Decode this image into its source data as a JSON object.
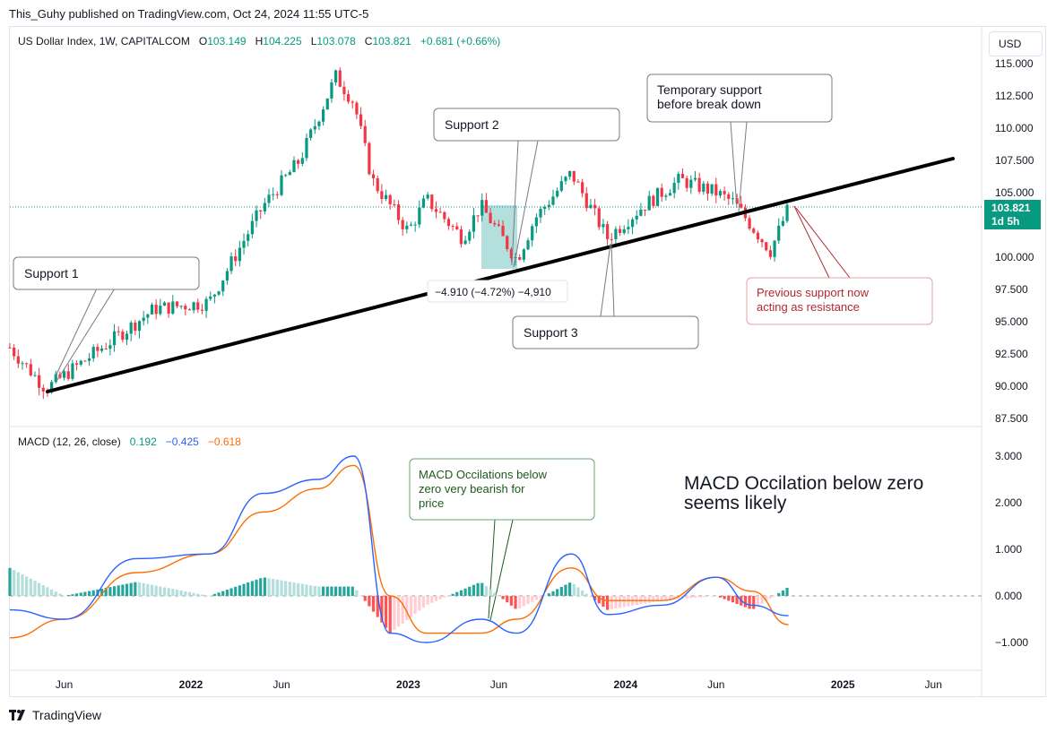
{
  "published": "This_Guhy published on TradingView.com, Oct 24, 2024 11:55 UTC-5",
  "footer_brand": "TradingView",
  "currency_button": "USD",
  "header": {
    "symbol": "US Dollar Index, 1W, CAPITALCOM",
    "o_label": "O",
    "o_value": "103.149",
    "h_label": "H",
    "h_value": "104.225",
    "l_label": "L",
    "l_value": "103.078",
    "c_label": "C",
    "c_value": "103.821",
    "change": "+0.681 (+0.66%)"
  },
  "price_badge": {
    "price": "103.821",
    "countdown": "1d 5h"
  },
  "measure_label": "−4.910 (−4.72%) −4,910",
  "macd_header": {
    "label": "MACD (12, 26, close)",
    "hist": "0.192",
    "macd": "−0.425",
    "signal": "−0.618"
  },
  "annotations": {
    "support1": "Support 1",
    "support2": "Support 2",
    "support3": "Support 3",
    "temp_support_l1": "Temporary support",
    "temp_support_l2": "before break down",
    "resistance_l1": "Previous support now",
    "resistance_l2": "acting as resistance",
    "macd_note_l1": "MACD Occilations below",
    "macd_note_l2": "zero very bearish for",
    "macd_note_l3": "price",
    "macd_big_l1": "MACD Occilation below zero",
    "macd_big_l2": "seems likely"
  },
  "colors": {
    "up": "#089981",
    "down": "#f23645",
    "macd": "#2962ff",
    "signal": "#ff6d00",
    "hist_up_strong": "#26a69a",
    "hist_up_weak": "#b2dfdb",
    "hist_dn_strong": "#ff5252",
    "hist_dn_weak": "#ffcdd2",
    "resistance_text": "#b22833",
    "macd_note_text": "#1e5a1e"
  },
  "chart_data": [
    {
      "type": "candlestick",
      "title": "US Dollar Index, 1W, CAPITALCOM",
      "x_tick_labels": [
        "Jun",
        "2022",
        "Jun",
        "2023",
        "Jun",
        "2024",
        "Jun",
        "2025",
        "Jun"
      ],
      "y_tick_labels": [
        "115.000",
        "112.500",
        "110.000",
        "107.500",
        "105.000",
        "100.000",
        "97.500",
        "95.000",
        "92.500",
        "90.000",
        "87.500"
      ],
      "ylim": [
        87.5,
        115.0
      ],
      "current_price": 103.821,
      "close_path": [
        [
          "2021-03",
          93.0
        ],
        [
          "2021-05",
          89.8
        ],
        [
          "2021-08",
          92.9
        ],
        [
          "2021-11",
          96.0
        ],
        [
          "2022-02",
          96.5
        ],
        [
          "2022-05",
          104.0
        ],
        [
          "2022-07",
          107.5
        ],
        [
          "2022-09",
          114.0
        ],
        [
          "2022-10",
          112.0
        ],
        [
          "2022-11",
          106.0
        ],
        [
          "2023-01",
          102.0
        ],
        [
          "2023-02",
          104.5
        ],
        [
          "2023-04",
          101.5
        ],
        [
          "2023-05",
          104.0
        ],
        [
          "2023-07",
          99.8
        ],
        [
          "2023-08",
          103.0
        ],
        [
          "2023-10",
          106.5
        ],
        [
          "2023-12",
          101.5
        ],
        [
          "2024-02",
          104.0
        ],
        [
          "2024-04",
          106.0
        ],
        [
          "2024-06",
          105.0
        ],
        [
          "2024-07",
          104.2
        ],
        [
          "2024-09",
          100.5
        ],
        [
          "2024-10",
          103.821
        ]
      ],
      "trendline": [
        [
          "2021-05",
          89.6
        ],
        [
          "2025-01",
          107.6
        ]
      ],
      "measure_box": {
        "from": 103.9,
        "to": 99.0,
        "change": -4.91,
        "change_pct": -4.72
      }
    },
    {
      "type": "line",
      "title": "MACD (12, 26, close)",
      "y_tick_labels": [
        "3.000",
        "2.000",
        "1.000",
        "0.000",
        "−1.000"
      ],
      "ylim": [
        -1.5,
        3.2
      ],
      "series": [
        {
          "name": "MACD",
          "x": [
            "2021-03",
            "2021-06",
            "2021-10",
            "2022-02",
            "2022-05",
            "2022-08",
            "2022-10",
            "2022-12",
            "2023-02",
            "2023-05",
            "2023-07",
            "2023-10",
            "2023-12",
            "2024-03",
            "2024-06",
            "2024-08",
            "2024-10"
          ],
          "values": [
            -0.3,
            -0.5,
            0.8,
            0.9,
            2.2,
            2.5,
            3.0,
            -0.8,
            -1.0,
            -0.5,
            -0.8,
            0.9,
            -0.4,
            -0.2,
            0.4,
            -0.2,
            -0.425
          ]
        },
        {
          "name": "Signal",
          "x": [
            "2021-03",
            "2021-06",
            "2021-10",
            "2022-02",
            "2022-05",
            "2022-08",
            "2022-10",
            "2022-12",
            "2023-02",
            "2023-05",
            "2023-07",
            "2023-10",
            "2023-12",
            "2024-03",
            "2024-06",
            "2024-08",
            "2024-10"
          ],
          "values": [
            -0.9,
            -0.5,
            0.5,
            0.9,
            1.8,
            2.3,
            2.8,
            0.0,
            -0.8,
            -0.8,
            -0.5,
            0.6,
            -0.1,
            -0.1,
            0.4,
            0.1,
            -0.618
          ]
        }
      ],
      "histogram_last": 0.192
    }
  ]
}
